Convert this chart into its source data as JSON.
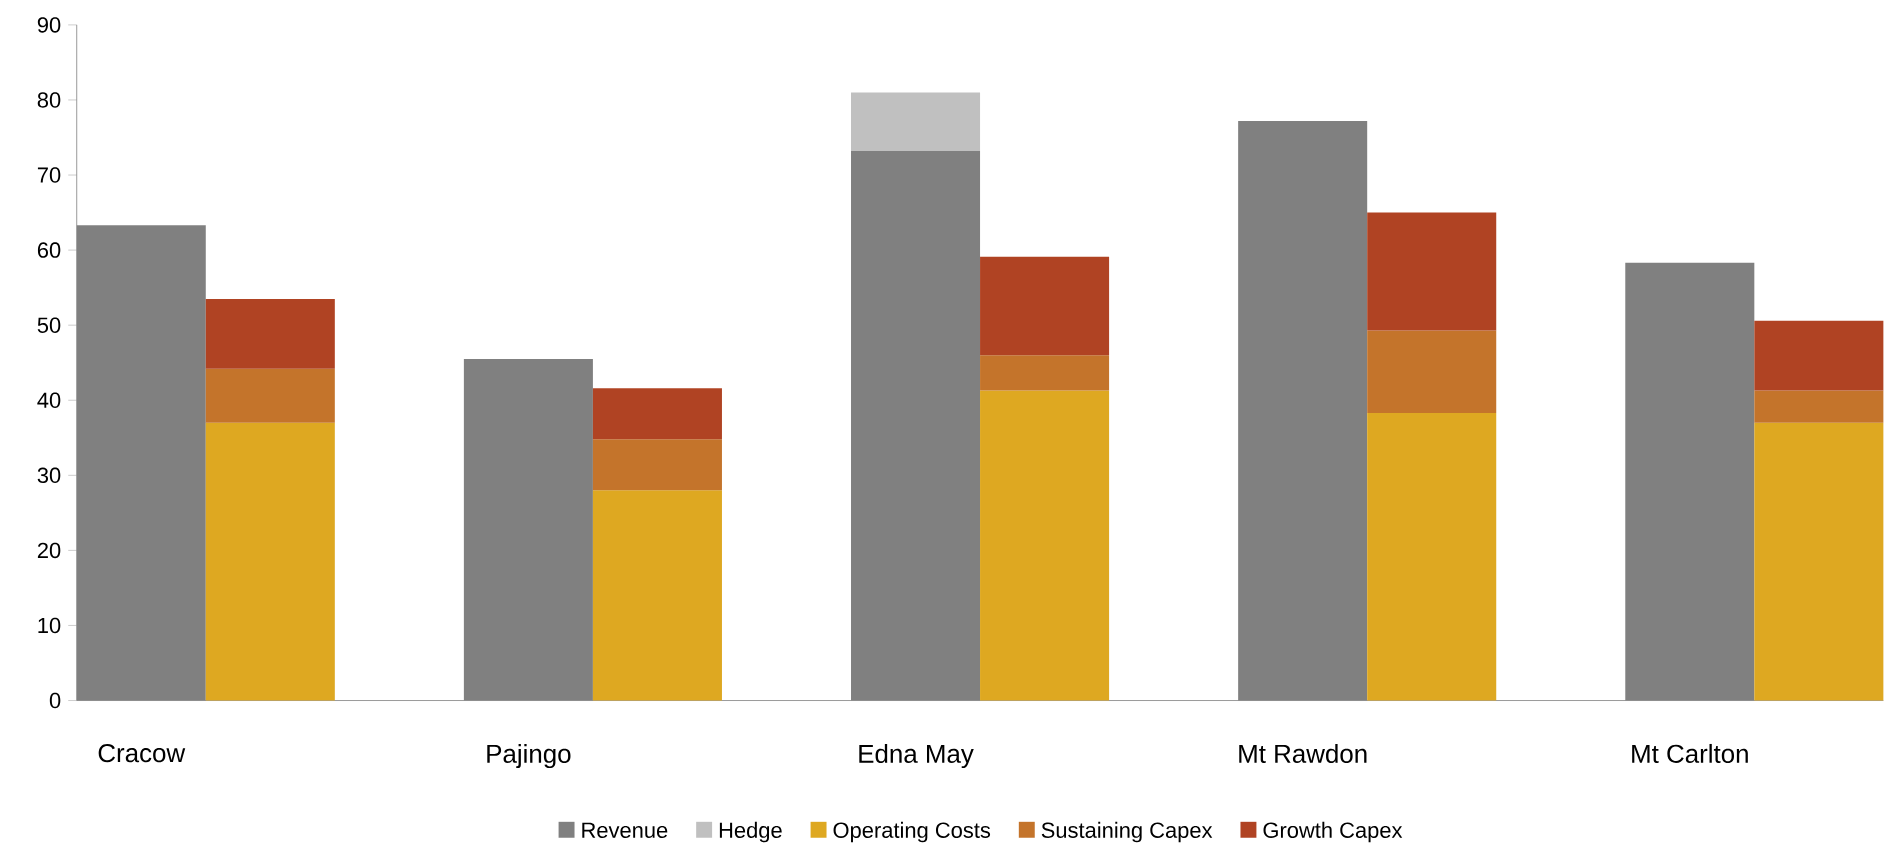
{
  "chart_data": {
    "type": "bar",
    "stacked": true,
    "categories": [
      "Cracow",
      null,
      null,
      "Pajingo",
      null,
      null,
      "Edna May",
      null,
      null,
      "Mt Rawdon",
      null,
      null,
      "Mt Carlton",
      null
    ],
    "series": [
      {
        "name": "Revenue",
        "color": "#808080",
        "values": [
          63.3,
          null,
          null,
          45.5,
          null,
          null,
          73.2,
          null,
          null,
          77.2,
          null,
          null,
          58.3,
          null
        ]
      },
      {
        "name": "Hedge",
        "color": "#c0c0c0",
        "values": [
          null,
          null,
          null,
          null,
          null,
          null,
          7.8,
          null,
          null,
          null,
          null,
          null,
          null,
          null
        ]
      },
      {
        "name": "Operating Costs",
        "color": "#dea821",
        "values": [
          null,
          37.0,
          null,
          null,
          28.0,
          null,
          null,
          41.3,
          null,
          null,
          38.3,
          null,
          null,
          37.0
        ]
      },
      {
        "name": "Sustaining Capex",
        "color": "#c4742b",
        "values": [
          null,
          7.2,
          null,
          null,
          6.8,
          null,
          null,
          4.7,
          null,
          null,
          11.0,
          null,
          null,
          4.3
        ]
      },
      {
        "name": "Growth Capex",
        "color": "#b04323",
        "values": [
          null,
          9.3,
          null,
          null,
          6.8,
          null,
          null,
          13.1,
          null,
          null,
          15.7,
          null,
          null,
          9.3
        ]
      }
    ],
    "ylim": [
      0,
      90
    ],
    "yticks": [
      0,
      10,
      20,
      30,
      40,
      50,
      60,
      70,
      80,
      90
    ],
    "grid": false,
    "legend": "bottom"
  }
}
